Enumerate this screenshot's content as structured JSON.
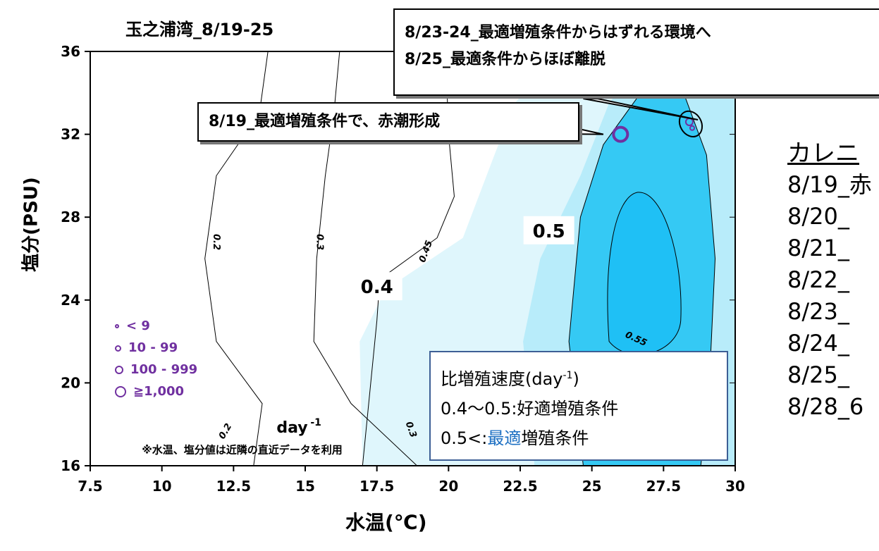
{
  "chart_data": {
    "type": "contour",
    "title": "玉之浦湾_8/19-25",
    "xlabel": "水温(℃)",
    "ylabel": "塩分(PSU)",
    "xlim": [
      7.5,
      30
    ],
    "ylim": [
      16,
      36
    ],
    "x_ticks": [
      "7.5",
      "10",
      "12.5",
      "15",
      "17.5",
      "20",
      "22.5",
      "25",
      "27.5",
      "30"
    ],
    "y_ticks": [
      "16",
      "20",
      "24",
      "28",
      "32",
      "36"
    ],
    "contour_labels": [
      "0.2",
      "0.3",
      "0.45",
      "0.55",
      "0.2",
      "0.3"
    ],
    "region_labels": [
      "0.4",
      "0.5"
    ],
    "unit_label": "day",
    "unit_exp": "-1",
    "points": [
      {
        "x": 26.0,
        "y": 32.0,
        "size_class": "≧1,000"
      },
      {
        "x": 28.4,
        "y": 32.6,
        "size_class": "100 - 999"
      },
      {
        "x": 28.5,
        "y": 32.3,
        "size_class": "10 - 99"
      }
    ],
    "annotations": {
      "callout_top_line1": "8/23-24_最適増殖条件からはずれる環境へ",
      "callout_top_line2": "8/25_最適条件からほぼ離脱",
      "callout_mid": "8/19_最適増殖条件で、赤潮形成",
      "note": "※水温、塩分値は近隣の直近データを利用"
    },
    "size_legend": [
      "< 9",
      "10 - 99",
      "100 - 999",
      "≧1,000"
    ],
    "rate_legend": {
      "title": "比増殖速度(day",
      "title_exp": "-1",
      "title_close": ")",
      "line2": "0.4〜0.5:好適増殖条件",
      "line3_pre": "0.5<:",
      "line3_accent": "最適",
      "line3_post": "増殖条件"
    },
    "colors": {
      "fill_0_4": "#dff6fc",
      "fill_0_45": "#b8ecfa",
      "fill_0_5": "#35c9f4",
      "fill_0_55": "#1fc0f5",
      "marker": "#7030a0"
    }
  },
  "side_panel": {
    "title": "カレニ",
    "items": [
      "8/19_赤",
      "8/20_ ",
      "8/21_ ",
      "8/22_ ",
      "8/23_ ",
      "8/24_ ",
      "8/25_ ",
      "8/28_6"
    ]
  }
}
